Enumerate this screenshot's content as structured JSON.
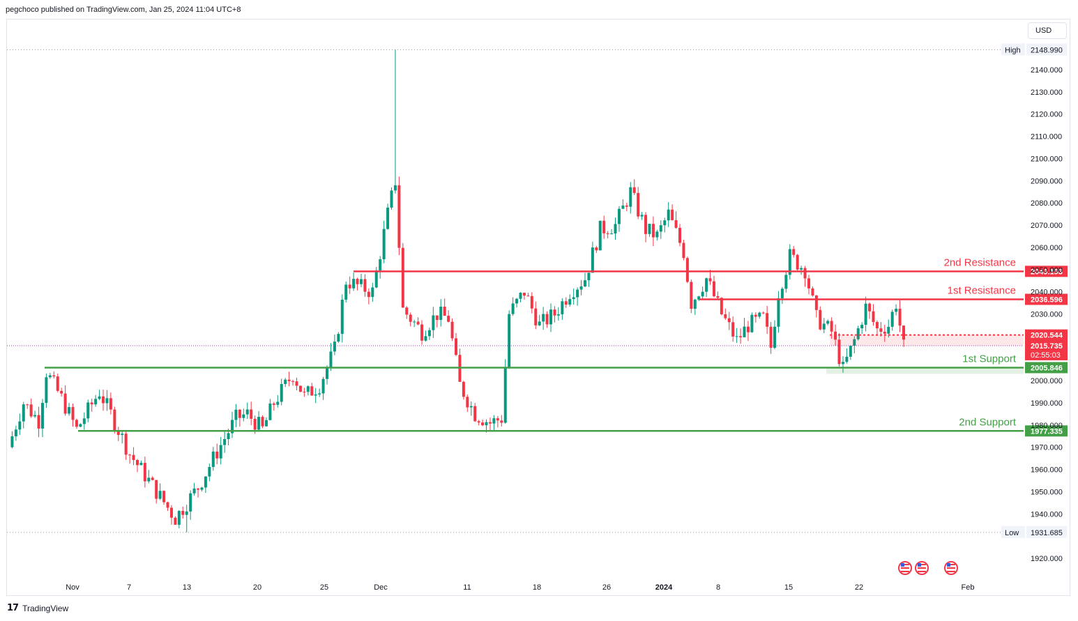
{
  "header": {
    "published_text": "pegchoco published on TradingView.com, Jan 25, 2024 11:04 UTC+8"
  },
  "currency_button": "USD",
  "footer": {
    "brand": "TradingView",
    "logo_icon": "tradingview-logo-icon"
  },
  "colors": {
    "up": "#089981",
    "down": "#f23645",
    "resistance": "#f23645",
    "support": "#43a047",
    "current": "#9c27b0"
  },
  "chart_data": {
    "type": "candlestick",
    "symbol_currency": "USD",
    "ylim": [
      1912,
      2153
    ],
    "y_ticks": [
      "2140.000",
      "2130.000",
      "2120.000",
      "2110.000",
      "2100.000",
      "2090.000",
      "2080.000",
      "2070.000",
      "2060.000",
      "2050.000",
      "2040.000",
      "2030.000",
      "2000.000",
      "1990.000",
      "1980.000",
      "1970.000",
      "1960.000",
      "1950.000",
      "1940.000",
      "1920.000"
    ],
    "x_ticks": [
      "Nov",
      "7",
      "13",
      "20",
      "25",
      "Dec",
      "11",
      "18",
      "26",
      "2024",
      "8",
      "15",
      "22",
      "Feb"
    ],
    "high": {
      "label": "High",
      "value": "2148.990"
    },
    "low": {
      "label": "Low",
      "value": "1931.685"
    },
    "levels": [
      {
        "name": "2nd Resistance",
        "value": "2049.193",
        "kind": "resistance"
      },
      {
        "name": "1st Resistance",
        "value": "2036.596",
        "kind": "resistance"
      },
      {
        "name": "1st Support",
        "value": "2005.846",
        "kind": "support"
      },
      {
        "name": "2nd Support",
        "value": "1977.335",
        "kind": "support"
      }
    ],
    "bid_price": "2020.544",
    "last_price": "2015.735",
    "countdown": "02:55:03",
    "close_path": [
      {
        "t": 0,
        "v": 1970
      },
      {
        "t": 4,
        "v": 1990
      },
      {
        "t": 8,
        "v": 1982
      },
      {
        "t": 10,
        "v": 2004
      },
      {
        "t": 14,
        "v": 1992
      },
      {
        "t": 18,
        "v": 1978
      },
      {
        "t": 24,
        "v": 1995
      },
      {
        "t": 27,
        "v": 1985
      },
      {
        "t": 32,
        "v": 1967
      },
      {
        "t": 37,
        "v": 1955
      },
      {
        "t": 44,
        "v": 1938
      },
      {
        "t": 50,
        "v": 1952
      },
      {
        "t": 55,
        "v": 1968
      },
      {
        "t": 60,
        "v": 1983
      },
      {
        "t": 63,
        "v": 1985
      },
      {
        "t": 67,
        "v": 1978
      },
      {
        "t": 70,
        "v": 1990
      },
      {
        "t": 75,
        "v": 2003
      },
      {
        "t": 78,
        "v": 1993
      },
      {
        "t": 82,
        "v": 1998
      },
      {
        "t": 86,
        "v": 2014
      },
      {
        "t": 89,
        "v": 2045
      },
      {
        "t": 93,
        "v": 2042
      },
      {
        "t": 96,
        "v": 2040
      },
      {
        "t": 100,
        "v": 2075
      },
      {
        "t": 102,
        "v": 2090
      },
      {
        "t": 104,
        "v": 2032
      },
      {
        "t": 109,
        "v": 2022
      },
      {
        "t": 113,
        "v": 2030
      },
      {
        "t": 116,
        "v": 2028
      },
      {
        "t": 119,
        "v": 1998
      },
      {
        "t": 123,
        "v": 1985
      },
      {
        "t": 127,
        "v": 1981
      },
      {
        "t": 130,
        "v": 1983
      },
      {
        "t": 132,
        "v": 2030
      },
      {
        "t": 136,
        "v": 2040
      },
      {
        "t": 140,
        "v": 2025
      },
      {
        "t": 144,
        "v": 2030
      },
      {
        "t": 148,
        "v": 2040
      },
      {
        "t": 152,
        "v": 2046
      },
      {
        "t": 156,
        "v": 2068
      },
      {
        "t": 160,
        "v": 2070
      },
      {
        "t": 164,
        "v": 2085
      },
      {
        "t": 168,
        "v": 2068
      },
      {
        "t": 171,
        "v": 2065
      },
      {
        "t": 174,
        "v": 2075
      },
      {
        "t": 178,
        "v": 2058
      },
      {
        "t": 180,
        "v": 2035
      },
      {
        "t": 184,
        "v": 2046
      },
      {
        "t": 188,
        "v": 2030
      },
      {
        "t": 192,
        "v": 2018
      },
      {
        "t": 195,
        "v": 2025
      },
      {
        "t": 199,
        "v": 2028
      },
      {
        "t": 201,
        "v": 2015
      },
      {
        "t": 203,
        "v": 2040
      },
      {
        "t": 206,
        "v": 2056
      },
      {
        "t": 210,
        "v": 2050
      },
      {
        "t": 213,
        "v": 2028
      },
      {
        "t": 217,
        "v": 2022
      },
      {
        "t": 220,
        "v": 2005
      },
      {
        "t": 223,
        "v": 2018
      },
      {
        "t": 226,
        "v": 2033
      },
      {
        "t": 229,
        "v": 2023
      },
      {
        "t": 232,
        "v": 2025
      },
      {
        "t": 234,
        "v": 2035
      },
      {
        "t": 236,
        "v": 2015
      }
    ]
  }
}
